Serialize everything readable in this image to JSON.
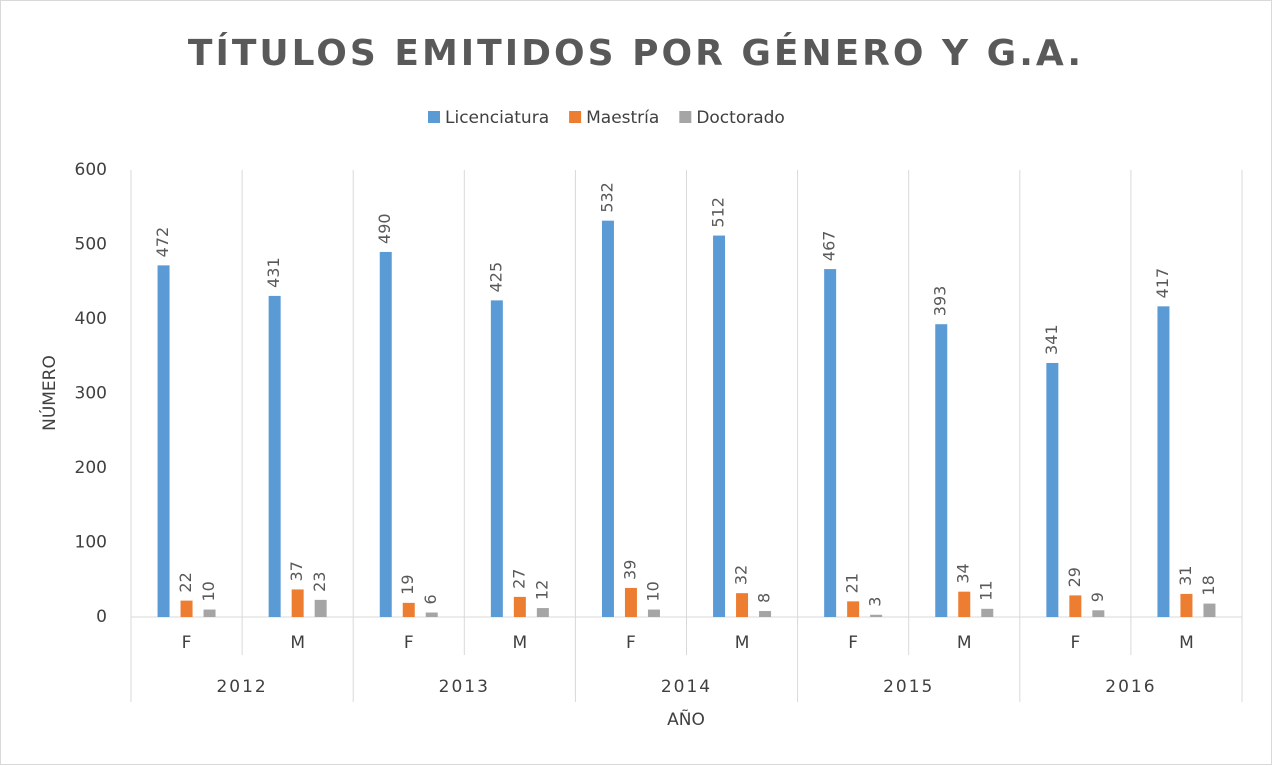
{
  "chart_data": {
    "type": "bar",
    "title": "TÍTULOS EMITIDOS POR GÉNERO Y G.A.",
    "x_label": "AÑO",
    "y_label": "NÚMERO",
    "categories": [
      "F",
      "M",
      "F",
      "M",
      "F",
      "M",
      "F",
      "M",
      "F",
      "M"
    ],
    "groups": [
      "2012",
      "2013",
      "2014",
      "2015",
      "2016"
    ],
    "series": [
      {
        "name": "Licenciatura",
        "color": "#5b9bd5",
        "values": [
          472,
          431,
          490,
          425,
          532,
          512,
          467,
          393,
          341,
          417
        ]
      },
      {
        "name": "Maestría",
        "color": "#ed7d31",
        "values": [
          22,
          37,
          19,
          27,
          39,
          32,
          21,
          34,
          29,
          31
        ]
      },
      {
        "name": "Doctorado",
        "color": "#a5a5a5",
        "values": [
          10,
          23,
          6,
          12,
          10,
          8,
          3,
          11,
          9,
          18
        ]
      }
    ],
    "ylim": [
      0,
      600
    ],
    "yticks": [
      0,
      100,
      200,
      300,
      400,
      500,
      600
    ],
    "legend": "top"
  }
}
